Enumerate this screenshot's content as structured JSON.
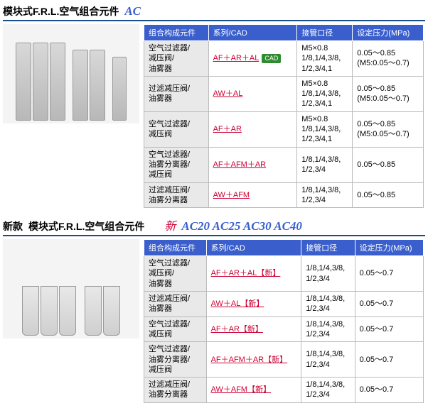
{
  "section1": {
    "title": "模块式F.R.L.空气组合元件",
    "model": "AC",
    "headers": [
      "组合构成元件",
      "系列/CAD",
      "接管口径",
      "设定压力(MPa)"
    ],
    "rows": [
      {
        "components": "空气过滤器/\n减压阀/\n油雾器",
        "series": "AF＋AR＋AL",
        "cad": "CAD",
        "port": "M5×0.8\n1/8,1/4,3/8,\n1/2,3/4,1",
        "pressure": "0.05～0.85\n(M5:0.05～0.7)"
      },
      {
        "components": "过滤减压阀/\n油雾器",
        "series": "AW＋AL",
        "port": "M5×0.8\n1/8,1/4,3/8,\n1/2,3/4,1",
        "pressure": "0.05～0.85\n(M5:0.05～0.7)"
      },
      {
        "components": "空气过滤器/\n减压阀",
        "series": "AF＋AR",
        "port": "M5×0.8\n1/8,1/4,3/8,\n1/2,3/4,1",
        "pressure": "0.05～0.85\n(M5:0.05～0.7)"
      },
      {
        "components": "空气过滤器/\n油雾分离器/\n减压阀",
        "series": "AF＋AFM＋AR",
        "port": "1/8,1/4,3/8,\n1/2,3/4",
        "pressure": "0.05～0.85"
      },
      {
        "components": "过滤减压阀/\n油雾分离器",
        "series": "AW＋AFM",
        "port": "1/8,1/4,3/8,\n1/2,3/4",
        "pressure": "0.05～0.85"
      }
    ]
  },
  "section2": {
    "prefix": "新款",
    "title": "模块式F.R.L.空气组合元件",
    "new_badge": "新",
    "models": "AC20 AC25 AC30 AC40",
    "headers": [
      "组合构成元件",
      "系列/CAD",
      "接管口径",
      "设定压力(MPa)"
    ],
    "rows": [
      {
        "components": "空气过滤器/\n减压阀/\n油雾器",
        "series": "AF＋AR＋AL【新】",
        "port": "1/8,1/4,3/8,\n1/2,3/4",
        "pressure": "0.05～0.7"
      },
      {
        "components": "过滤减压阀/\n油雾器",
        "series": "AW＋AL【新】",
        "port": "1/8,1/4,3/8,\n1/2,3/4",
        "pressure": "0.05～0.7"
      },
      {
        "components": "空气过滤器/\n减压阀",
        "series": "AF＋AR【新】",
        "port": "1/8,1/4,3/8,\n1/2,3/4",
        "pressure": "0.05～0.7"
      },
      {
        "components": "空气过滤器/\n油雾分离器/\n减压阀",
        "series": "AF＋AFM＋AR【新】",
        "port": "1/8,1/4,3/8,\n1/2,3/4",
        "pressure": "0.05～0.7"
      },
      {
        "components": "过滤减压阀/\n油雾分离器",
        "series": "AW＋AFM【新】",
        "port": "1/8,1/4,3/8,\n1/2,3/4",
        "pressure": "0.05～0.7"
      }
    ]
  }
}
